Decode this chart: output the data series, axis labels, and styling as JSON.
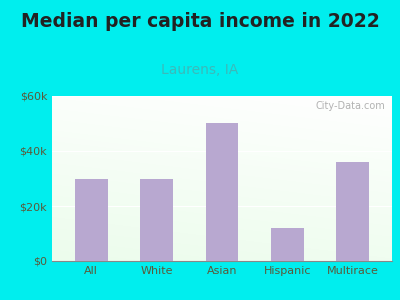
{
  "title": "Median per capita income in 2022",
  "subtitle": "Laurens, IA",
  "categories": [
    "All",
    "White",
    "Asian",
    "Hispanic",
    "Multirace"
  ],
  "values": [
    30000,
    30000,
    50000,
    12000,
    36000
  ],
  "bar_color": "#b8a8d0",
  "title_fontsize": 13.5,
  "subtitle_fontsize": 10,
  "subtitle_color": "#3ababa",
  "title_color": "#222222",
  "tick_color": "#5a5a3a",
  "background_outer": "#00eeee",
  "ylim": [
    0,
    60000
  ],
  "yticks": [
    0,
    20000,
    40000,
    60000
  ],
  "ytick_labels": [
    "$0",
    "$20k",
    "$40k",
    "$60k"
  ],
  "watermark": "City-Data.com",
  "bar_width": 0.5
}
